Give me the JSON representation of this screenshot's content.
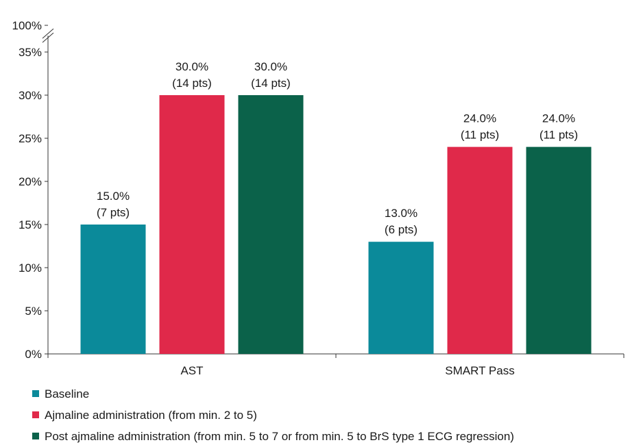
{
  "chart_data": {
    "type": "bar",
    "categories": [
      "AST",
      "SMART Pass"
    ],
    "series": [
      {
        "name": "Baseline",
        "color": "#0b8a9a",
        "values": [
          15.0,
          13.0
        ],
        "labels": [
          "15.0%",
          "13.0%"
        ],
        "pts": [
          "(7 pts)",
          "(6 pts)"
        ]
      },
      {
        "name": "Ajmaline administration (from min. 2 to 5)",
        "color": "#e0294a",
        "values": [
          30.0,
          24.0
        ],
        "labels": [
          "30.0%",
          "24.0%"
        ],
        "pts": [
          "(14 pts)",
          "(11 pts)"
        ]
      },
      {
        "name": "Post ajmaline administration (from min. 5 to 7 or from min. 5 to BrS type 1 ECG regression)",
        "color": "#0b624a",
        "values": [
          30.0,
          24.0
        ],
        "labels": [
          "30.0%",
          "24.0%"
        ],
        "pts": [
          "(14 pts)",
          "(11 pts)"
        ]
      }
    ],
    "yticks": [
      0,
      5,
      10,
      15,
      20,
      25,
      30,
      35
    ],
    "ytick_labels": [
      "0%",
      "5%",
      "10%",
      "15%",
      "20%",
      "25%",
      "30%",
      "35%"
    ],
    "ybreak_label": "100%",
    "ylim": [
      0,
      35
    ],
    "axis_break": true,
    "grid": false,
    "legend_position": "bottom-left"
  }
}
